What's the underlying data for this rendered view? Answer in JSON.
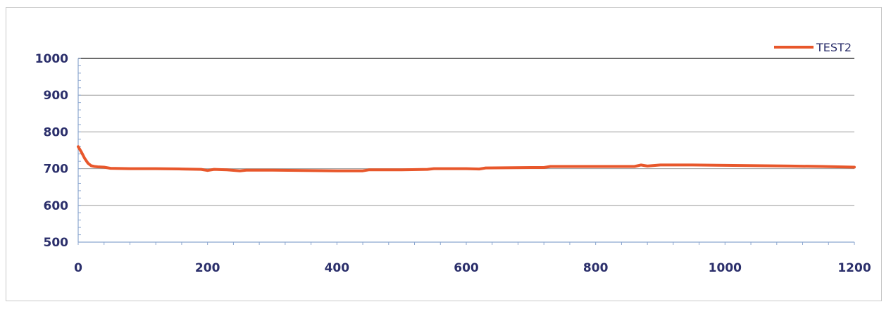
{
  "chart_data": {
    "type": "line",
    "title": "",
    "xlabel": "",
    "ylabel": "",
    "xlim": [
      0,
      1200
    ],
    "ylim": [
      500,
      1000
    ],
    "xticks": [
      0,
      200,
      400,
      600,
      800,
      1000,
      1200
    ],
    "yticks": [
      500,
      600,
      700,
      800,
      900,
      1000
    ],
    "grid": true,
    "legend": "top-right",
    "series": [
      {
        "name": "TEST2",
        "color": "#e8572b",
        "x": [
          0,
          5,
          10,
          15,
          20,
          25,
          30,
          40,
          50,
          80,
          120,
          160,
          190,
          200,
          210,
          230,
          250,
          260,
          300,
          350,
          400,
          440,
          450,
          500,
          540,
          550,
          600,
          620,
          630,
          700,
          720,
          730,
          800,
          860,
          870,
          880,
          900,
          950,
          1000,
          1100,
          1150,
          1200
        ],
        "y": [
          760,
          745,
          728,
          715,
          708,
          706,
          705,
          704,
          701,
          700,
          700,
          699,
          698,
          695,
          698,
          697,
          694,
          696,
          696,
          695,
          694,
          694,
          697,
          697,
          698,
          700,
          700,
          699,
          702,
          703,
          703,
          706,
          706,
          706,
          710,
          707,
          710,
          710,
          709,
          707,
          706,
          704
        ]
      }
    ]
  }
}
